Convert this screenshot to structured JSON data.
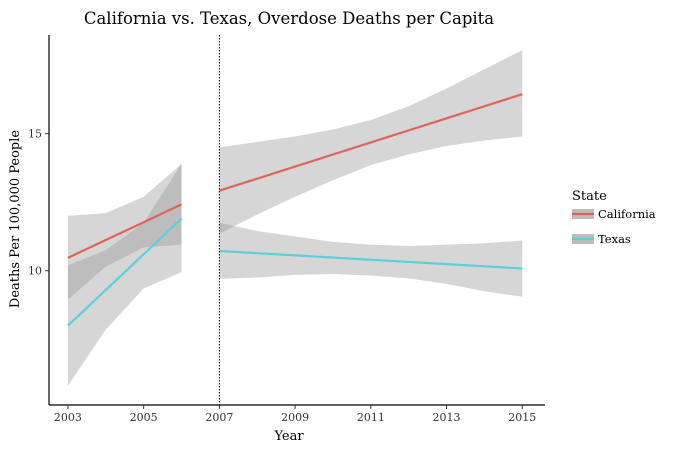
{
  "chart_data": {
    "type": "line",
    "title": "California vs. Texas, Overdose Deaths per Capita",
    "xlabel": "Year",
    "ylabel": "Deaths Per 100,000 People",
    "xlim": [
      2002.5,
      2015.6
    ],
    "ylim": [
      5.1,
      18.6
    ],
    "x_ticks": [
      "2003",
      "2005",
      "2007",
      "2009",
      "2011",
      "2013",
      "2015"
    ],
    "y_ticks": [
      "10",
      "15"
    ],
    "vline": 2007,
    "grid": false,
    "legend": {
      "title": "State",
      "placement": "right",
      "entries": [
        "California",
        "Texas"
      ]
    },
    "series": [
      {
        "name": "California",
        "color": "#E0635A",
        "segments": [
          {
            "x": [
              2003,
              2004,
              2005,
              2006
            ],
            "y": [
              10.47,
              11.12,
              11.77,
              12.42
            ],
            "ci_upper": [
              12.0,
              12.1,
              12.7,
              13.9
            ],
            "ci_lower": [
              8.95,
              10.15,
              10.85,
              10.95
            ]
          },
          {
            "x": [
              2007,
              2008,
              2009,
              2010,
              2011,
              2012,
              2013,
              2014,
              2015
            ],
            "y": [
              12.92,
              13.36,
              13.8,
              14.24,
              14.68,
              15.12,
              15.56,
              16.0,
              16.44
            ],
            "ci_upper": [
              14.5,
              14.7,
              14.9,
              15.15,
              15.5,
              16.0,
              16.65,
              17.35,
              18.05
            ],
            "ci_lower": [
              11.35,
              12.05,
              12.7,
              13.3,
              13.85,
              14.25,
              14.55,
              14.75,
              14.9
            ]
          }
        ]
      },
      {
        "name": "Texas",
        "color": "#5BD0D8",
        "segments": [
          {
            "x": [
              2003,
              2004,
              2005,
              2006
            ],
            "y": [
              8.0,
              9.3,
              10.6,
              11.9
            ],
            "ci_upper": [
              10.2,
              10.75,
              11.75,
              13.9
            ],
            "ci_lower": [
              5.8,
              7.85,
              9.35,
              9.95
            ]
          },
          {
            "x": [
              2007,
              2008,
              2009,
              2010,
              2011,
              2012,
              2013,
              2014,
              2015
            ],
            "y": [
              10.72,
              10.64,
              10.56,
              10.48,
              10.4,
              10.32,
              10.24,
              10.16,
              10.08
            ],
            "ci_upper": [
              11.75,
              11.45,
              11.25,
              11.05,
              10.95,
              10.9,
              10.95,
              11.0,
              11.1
            ],
            "ci_lower": [
              9.7,
              9.75,
              9.85,
              9.88,
              9.82,
              9.72,
              9.52,
              9.25,
              9.05
            ]
          }
        ]
      }
    ]
  }
}
